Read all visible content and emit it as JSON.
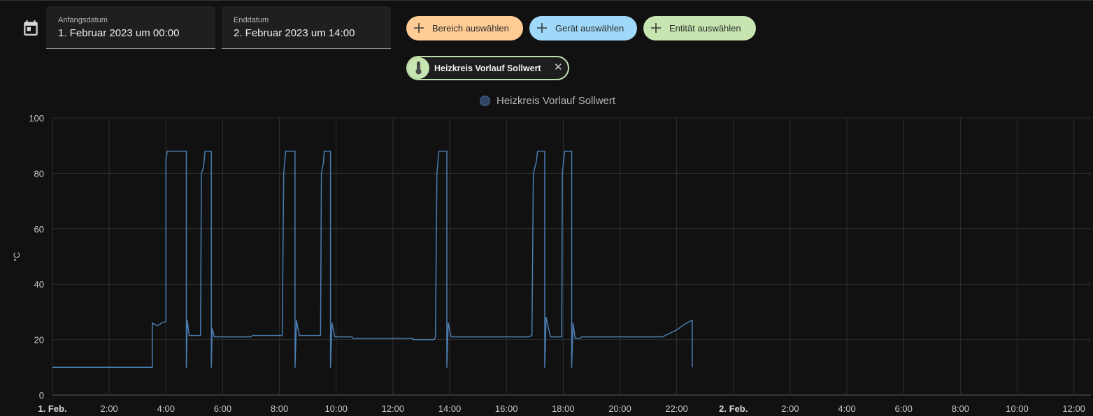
{
  "date_picker": {
    "start_label": "Anfangsdatum",
    "start_value": "1. Februar 2023 um 00:00",
    "end_label": "Enddatum",
    "end_value": "2. Februar 2023 um 14:00"
  },
  "target_buttons": {
    "area": "Bereich auswählen",
    "device": "Gerät auswählen",
    "entity": "Entität auswählen"
  },
  "selected_entity": {
    "label": "Heizkreis Vorlauf Sollwert",
    "icon": "thermometer-icon"
  },
  "colors": {
    "area_button": "#ffcc95",
    "device_button": "#9fd9f9",
    "entity_button": "#c7e5b0",
    "series_line": "#4a7db0"
  },
  "chart_data": {
    "type": "line",
    "xlabel": "",
    "ylabel": "°C",
    "ylim": [
      0,
      100
    ],
    "y_ticks": [
      0,
      20,
      40,
      60,
      80,
      100
    ],
    "x_range_hours": [
      0,
      36.6
    ],
    "x_ticks": [
      {
        "h": 0,
        "label": "1. Feb.",
        "bold": true
      },
      {
        "h": 2,
        "label": "2:00"
      },
      {
        "h": 4,
        "label": "4:00"
      },
      {
        "h": 6,
        "label": "6:00"
      },
      {
        "h": 8,
        "label": "8:00"
      },
      {
        "h": 10,
        "label": "10:00"
      },
      {
        "h": 12,
        "label": "12:00"
      },
      {
        "h": 14,
        "label": "14:00"
      },
      {
        "h": 16,
        "label": "16:00"
      },
      {
        "h": 18,
        "label": "18:00"
      },
      {
        "h": 20,
        "label": "20:00"
      },
      {
        "h": 22,
        "label": "22:00"
      },
      {
        "h": 24,
        "label": "2. Feb.",
        "bold": true
      },
      {
        "h": 26,
        "label": "2:00"
      },
      {
        "h": 28,
        "label": "4:00"
      },
      {
        "h": 30,
        "label": "6:00"
      },
      {
        "h": 32,
        "label": "8:00"
      },
      {
        "h": 34,
        "label": "10:00"
      },
      {
        "h": 36,
        "label": "12:00"
      }
    ],
    "grid": true,
    "legend_position": "top-center",
    "series": [
      {
        "name": "Heizkreis Vorlauf Sollwert",
        "points": [
          [
            0.0,
            10
          ],
          [
            3.52,
            10
          ],
          [
            3.52,
            26
          ],
          [
            3.7,
            25
          ],
          [
            3.85,
            26
          ],
          [
            4.0,
            26.5
          ],
          [
            4.0,
            85
          ],
          [
            4.05,
            88
          ],
          [
            4.72,
            88
          ],
          [
            4.72,
            10
          ],
          [
            4.75,
            27
          ],
          [
            4.82,
            21.5
          ],
          [
            5.22,
            21.5
          ],
          [
            5.25,
            80
          ],
          [
            5.32,
            82
          ],
          [
            5.38,
            88
          ],
          [
            5.6,
            88
          ],
          [
            5.6,
            10
          ],
          [
            5.63,
            24
          ],
          [
            5.7,
            21
          ],
          [
            7.0,
            21
          ],
          [
            7.05,
            21.5
          ],
          [
            8.1,
            21.5
          ],
          [
            8.15,
            80
          ],
          [
            8.22,
            88
          ],
          [
            8.55,
            88
          ],
          [
            8.55,
            10
          ],
          [
            8.6,
            27
          ],
          [
            8.7,
            21.5
          ],
          [
            9.45,
            21.5
          ],
          [
            9.48,
            80
          ],
          [
            9.55,
            84
          ],
          [
            9.58,
            88
          ],
          [
            9.8,
            88
          ],
          [
            9.8,
            10
          ],
          [
            9.85,
            26
          ],
          [
            9.95,
            21
          ],
          [
            10.55,
            21
          ],
          [
            10.6,
            20.5
          ],
          [
            12.7,
            20.5
          ],
          [
            12.7,
            20
          ],
          [
            13.45,
            20
          ],
          [
            13.5,
            21
          ],
          [
            13.55,
            80
          ],
          [
            13.62,
            88
          ],
          [
            13.9,
            88
          ],
          [
            13.9,
            10
          ],
          [
            13.95,
            26
          ],
          [
            14.05,
            21
          ],
          [
            16.8,
            21
          ],
          [
            16.9,
            21.5
          ],
          [
            16.95,
            80
          ],
          [
            17.05,
            84
          ],
          [
            17.1,
            88
          ],
          [
            17.35,
            88
          ],
          [
            17.35,
            10
          ],
          [
            17.4,
            28
          ],
          [
            17.55,
            21
          ],
          [
            17.95,
            21
          ],
          [
            17.97,
            80
          ],
          [
            18.05,
            88
          ],
          [
            18.3,
            88
          ],
          [
            18.3,
            10
          ],
          [
            18.35,
            26
          ],
          [
            18.42,
            20.5
          ],
          [
            18.6,
            20.5
          ],
          [
            18.65,
            21
          ],
          [
            21.5,
            21
          ],
          [
            21.7,
            22
          ],
          [
            22.0,
            23.5
          ],
          [
            22.2,
            25
          ],
          [
            22.35,
            26
          ],
          [
            22.55,
            27
          ],
          [
            22.55,
            10
          ],
          [
            22.55,
            10
          ]
        ]
      }
    ]
  }
}
